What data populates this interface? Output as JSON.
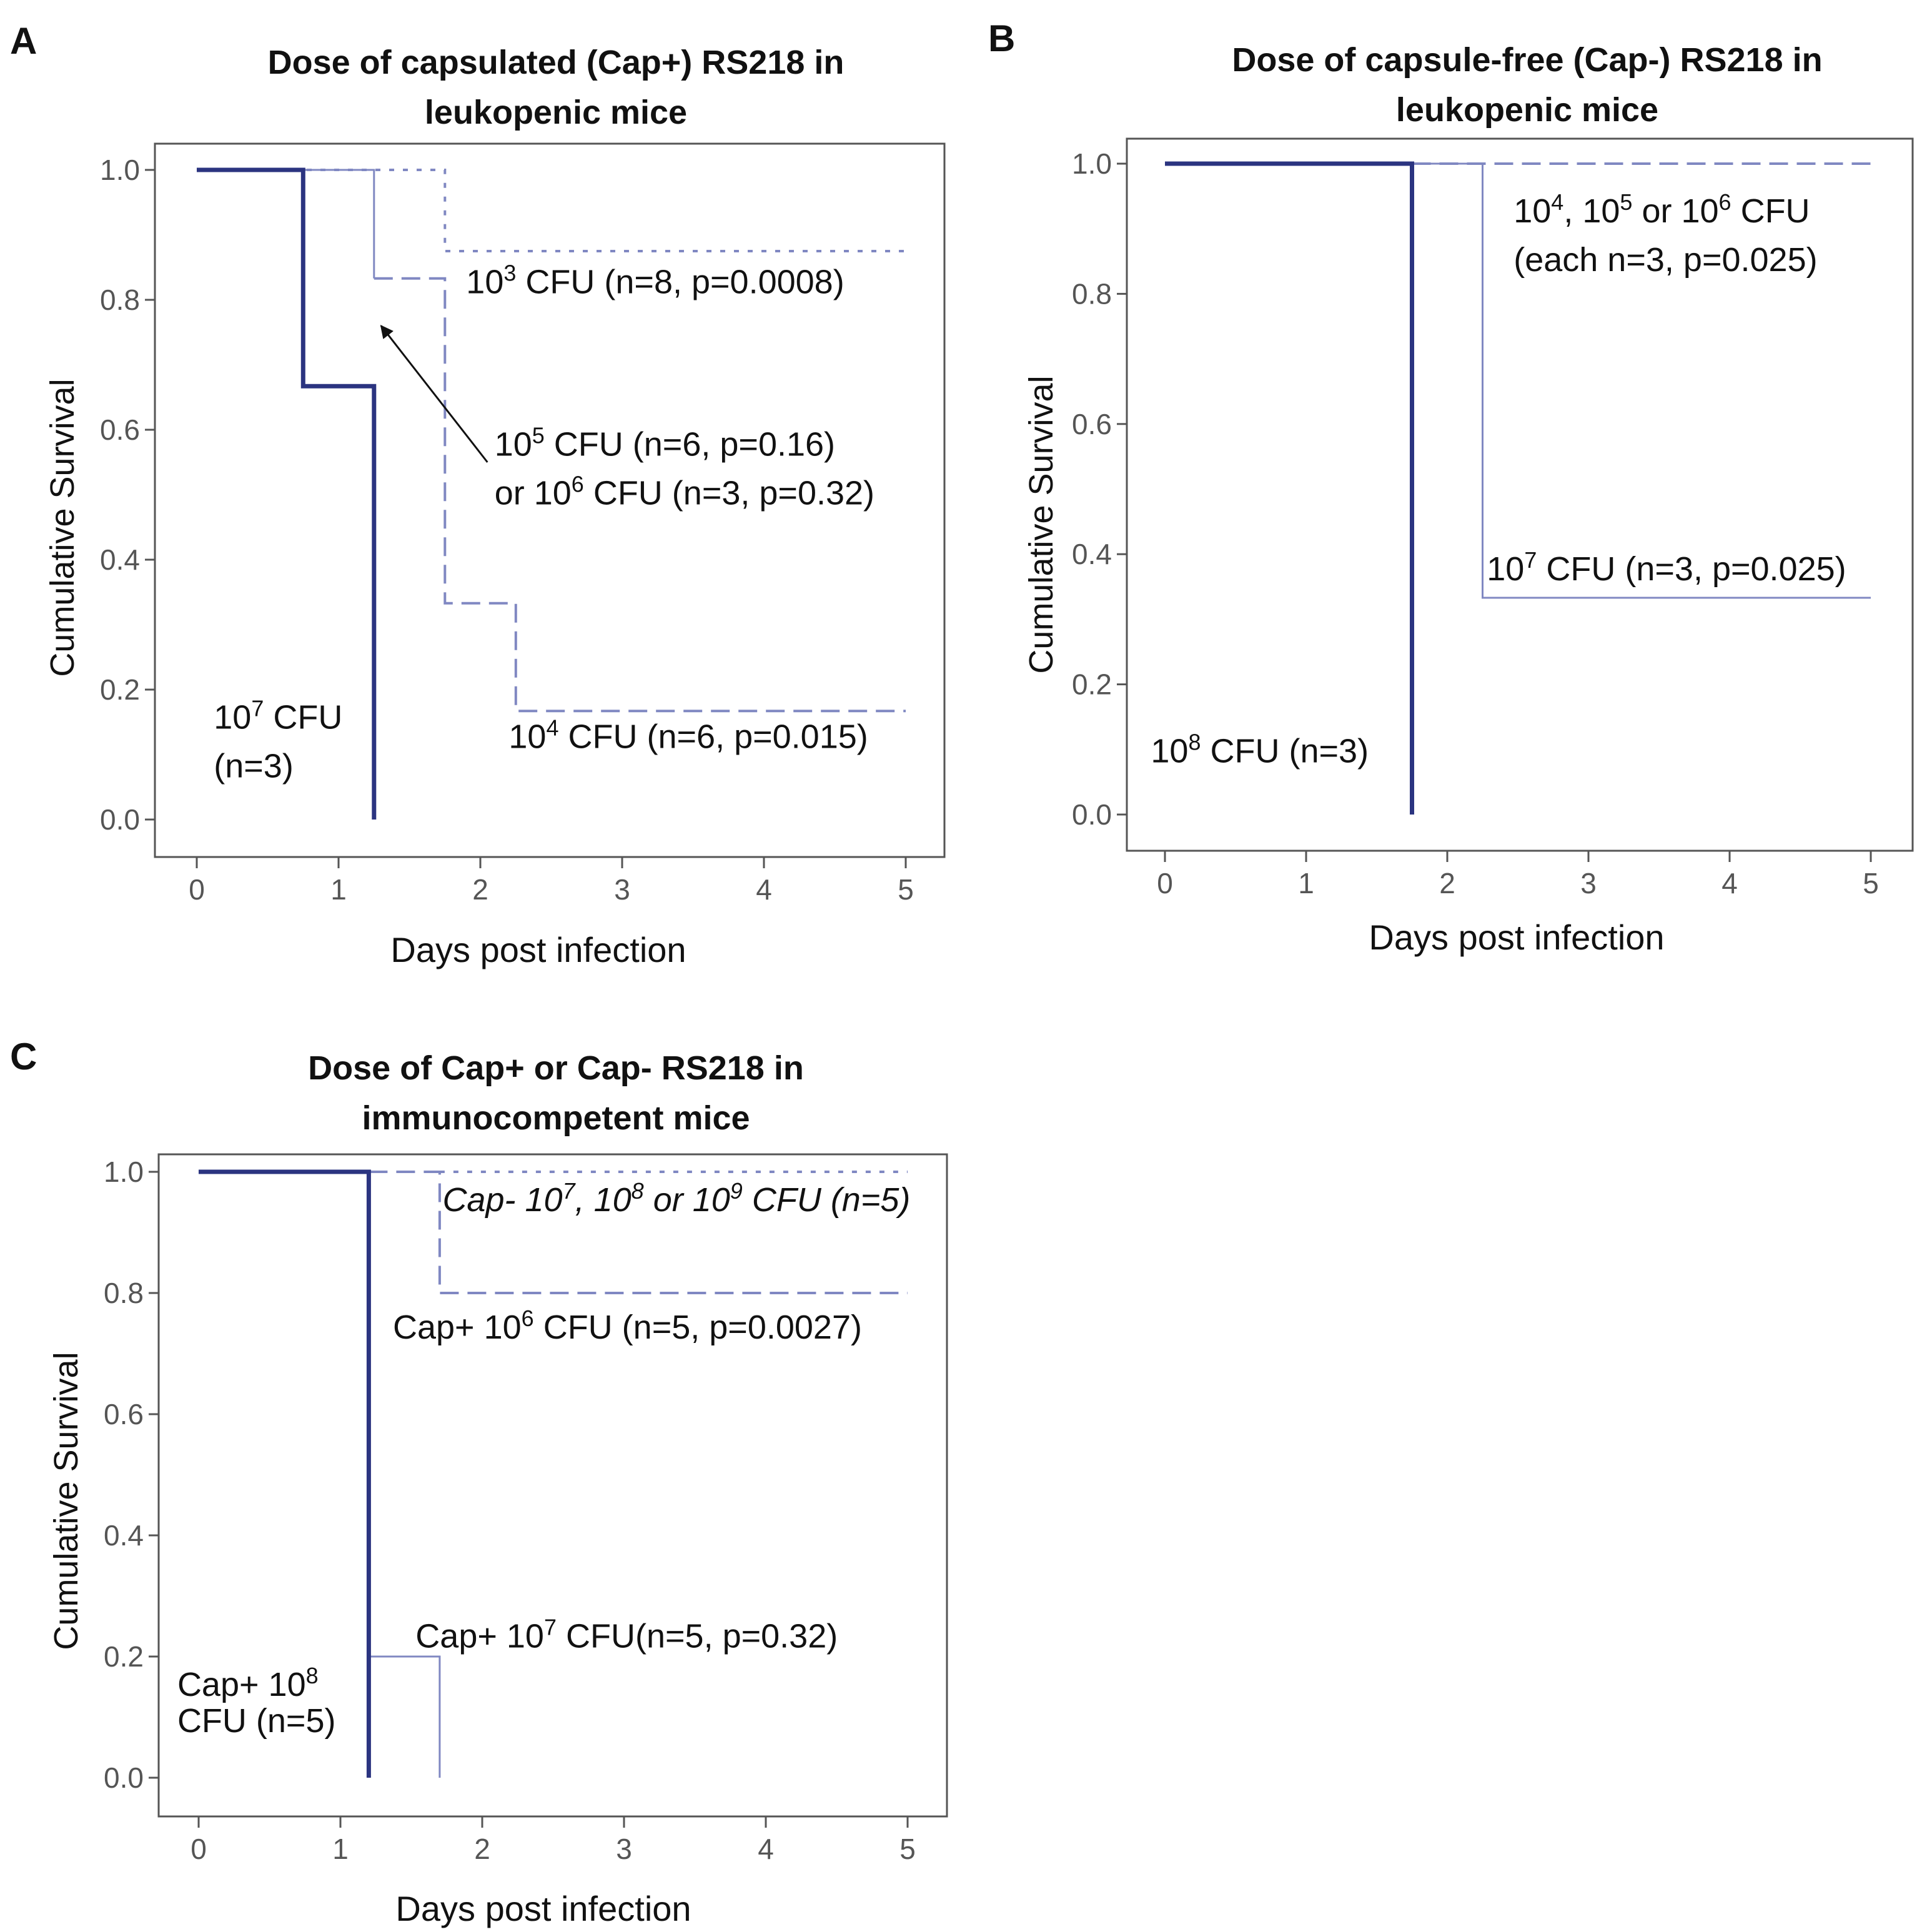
{
  "figure": {
    "dark_color": "#2b3480",
    "light_color": "#8088c2",
    "axis_color": "#555555"
  },
  "chart_data": [
    {
      "panel": "A",
      "type": "line",
      "subtype": "kaplan-meier-step",
      "title": "Dose of capsulated (Cap+) RS218 in leukopenic mice",
      "title_lines": [
        "Dose of capsulated (Cap+) RS218 in",
        "leukopenic mice"
      ],
      "xlabel": "Days post infection",
      "ylabel": "Cumulative Survival",
      "xlim": [
        0,
        5
      ],
      "ylim": [
        0,
        1
      ],
      "xticks": [
        "0",
        "1",
        "2",
        "3",
        "4",
        "5"
      ],
      "yticks": [
        "0.0",
        "0.2",
        "0.4",
        "0.6",
        "0.8",
        "1.0"
      ],
      "grid": false,
      "series": [
        {
          "name": "10^3 CFU",
          "style": "dotted",
          "color": "light",
          "x": [
            0,
            1.75,
            1.75,
            5
          ],
          "y": [
            1,
            1,
            0.875,
            0.875
          ]
        },
        {
          "name": "10^5 or 10^6 CFU",
          "style": "solid-thin",
          "color": "light",
          "x": [
            0,
            1.25,
            1.25
          ],
          "y": [
            1,
            1,
            0.833
          ]
        },
        {
          "name": "10^4 CFU",
          "style": "dashed",
          "color": "light",
          "x": [
            1.25,
            1.75,
            1.75,
            2.25,
            2.25,
            5
          ],
          "y": [
            0.833,
            0.833,
            0.333,
            0.333,
            0.167,
            0.167
          ]
        },
        {
          "name": "10^7 CFU",
          "style": "solid-thick",
          "color": "dark",
          "x": [
            0,
            0.75,
            0.75,
            1.25,
            1.25
          ],
          "y": [
            1,
            1,
            0.667,
            0.667,
            0
          ]
        }
      ],
      "annotations": [
        {
          "lines": [
            [
              {
                "t": "10"
              },
              {
                "sup": "3"
              },
              {
                "t": " CFU  (n=8,  p=0.0008)"
              }
            ]
          ],
          "x": 1.9,
          "y": 0.81,
          "anchor": "start"
        },
        {
          "lines": [
            [
              {
                "t": "10"
              },
              {
                "sup": "5"
              },
              {
                "t": " CFU  (n=6,  p=0.16)"
              }
            ],
            [
              {
                "t": "or 10"
              },
              {
                "sup": "6"
              },
              {
                "t": " CFU  (n=3,  p=0.32)"
              }
            ]
          ],
          "x": 2.1,
          "y": 0.56,
          "anchor": "start"
        },
        {
          "lines": [
            [
              {
                "t": "10"
              },
              {
                "sup": "4"
              },
              {
                "t": " CFU  (n=6,  p=0.015)"
              }
            ]
          ],
          "x": 2.2,
          "y": 0.11,
          "anchor": "start"
        },
        {
          "lines": [
            [
              {
                "t": "10"
              },
              {
                "sup": "7"
              },
              {
                "t": " CFU"
              }
            ],
            [
              {
                "t": "(n=3)"
              }
            ]
          ],
          "x": 0.12,
          "y": 0.14,
          "anchor": "start"
        }
      ],
      "arrows": [
        {
          "from": [
            2.05,
            0.55
          ],
          "to": [
            1.3,
            0.76
          ]
        }
      ]
    },
    {
      "panel": "B",
      "type": "line",
      "subtype": "kaplan-meier-step",
      "title": "Dose of capsule-free (Cap-) RS218 in leukopenic mice",
      "title_lines": [
        "Dose of capsule-free (Cap-) RS218 in",
        "leukopenic mice"
      ],
      "xlabel": "Days post infection",
      "ylabel": "Cumulative Survival",
      "xlim": [
        0,
        5
      ],
      "ylim": [
        0,
        1
      ],
      "xticks": [
        "0",
        "1",
        "2",
        "3",
        "4",
        "5"
      ],
      "yticks": [
        "0.0",
        "0.2",
        "0.4",
        "0.6",
        "0.8",
        "1.0"
      ],
      "grid": false,
      "series": [
        {
          "name": "10^4, 10^5 or 10^6 CFU",
          "style": "dashed",
          "color": "light",
          "x": [
            1.75,
            5
          ],
          "y": [
            1,
            1
          ]
        },
        {
          "name": "10^7 CFU",
          "style": "solid-thin",
          "color": "light",
          "x": [
            0,
            2.25,
            2.25,
            5
          ],
          "y": [
            1,
            1,
            0.333,
            0.333
          ]
        },
        {
          "name": "10^8 CFU",
          "style": "solid-thick",
          "color": "dark",
          "x": [
            0,
            1.75,
            1.75
          ],
          "y": [
            1,
            1,
            0
          ]
        }
      ],
      "annotations": [
        {
          "lines": [
            [
              {
                "t": "10"
              },
              {
                "sup": "4"
              },
              {
                "t": ",  10"
              },
              {
                "sup": "5"
              },
              {
                "t": " or  10"
              },
              {
                "sup": "6"
              },
              {
                "t": " CFU"
              }
            ],
            [
              {
                "t": "(each  n=3,  p=0.025)"
              }
            ]
          ],
          "x": 2.47,
          "y": 0.91,
          "anchor": "start"
        },
        {
          "lines": [
            [
              {
                "t": "10"
              },
              {
                "sup": "7"
              },
              {
                "t": " CFU  (n=3,  p=0.025)"
              }
            ]
          ],
          "x": 2.28,
          "y": 0.36,
          "anchor": "start"
        },
        {
          "lines": [
            [
              {
                "t": "10"
              },
              {
                "sup": "8"
              },
              {
                "t": " CFU  (n=3)"
              }
            ]
          ],
          "x": -0.1,
          "y": 0.08,
          "anchor": "start"
        }
      ],
      "arrows": []
    },
    {
      "panel": "C",
      "type": "line",
      "subtype": "kaplan-meier-step",
      "title": "Dose of Cap+ or Cap- RS218 in immunocompetent mice",
      "title_lines": [
        "Dose of Cap+ or Cap- RS218  in",
        "immunocompetent mice"
      ],
      "xlabel": "Days post infection",
      "ylabel": "Cumulative Survival",
      "xlim": [
        0,
        5
      ],
      "ylim": [
        0,
        1
      ],
      "xticks": [
        "0",
        "1",
        "2",
        "3",
        "4",
        "5"
      ],
      "yticks": [
        "0.0",
        "0.2",
        "0.4",
        "0.6",
        "0.8",
        "1.0"
      ],
      "grid": false,
      "series": [
        {
          "name": "Cap- 10^7, 10^8 or 10^9 CFU",
          "style": "dotted",
          "color": "light",
          "x": [
            1.7,
            5
          ],
          "y": [
            1,
            1
          ]
        },
        {
          "name": "Cap+ 10^6 CFU",
          "style": "dashed",
          "color": "light",
          "x": [
            1.2,
            1.7,
            1.7,
            5
          ],
          "y": [
            1,
            1,
            0.8,
            0.8
          ]
        },
        {
          "name": "Cap+ 10^7 CFU",
          "style": "solid-thin",
          "color": "light",
          "x": [
            1.2,
            1.7,
            1.7
          ],
          "y": [
            0.2,
            0.2,
            0
          ]
        },
        {
          "name": "Cap+ 10^8 CFU",
          "style": "solid-thick",
          "color": "dark",
          "x": [
            0,
            1.2,
            1.2
          ],
          "y": [
            1,
            1,
            0
          ]
        }
      ],
      "annotations": [
        {
          "italic": true,
          "lines": [
            [
              {
                "t": "Cap- 10"
              },
              {
                "sup": "7"
              },
              {
                "t": ",  10"
              },
              {
                "sup": "8"
              },
              {
                "t": " or  10"
              },
              {
                "sup": "9"
              },
              {
                "t": " CFU  (n=5)"
              }
            ]
          ],
          "x": 1.72,
          "y": 0.935,
          "anchor": "start"
        },
        {
          "lines": [
            [
              {
                "t": "Cap+  10"
              },
              {
                "sup": "6"
              },
              {
                "t": " CFU  (n=5,  p=0.0027)"
              }
            ]
          ],
          "x": 1.37,
          "y": 0.725,
          "anchor": "start"
        },
        {
          "lines": [
            [
              {
                "t": "Cap+  10"
              },
              {
                "sup": "7"
              },
              {
                "t": " CFU(n=5,  p=0.32)"
              }
            ]
          ],
          "x": 1.53,
          "y": 0.215,
          "anchor": "start"
        },
        {
          "lines": [
            [
              {
                "t": "Cap+  10"
              },
              {
                "sup": "8"
              }
            ],
            [
              {
                "t": "CFU  (n=5)"
              }
            ]
          ],
          "x": -0.15,
          "y": 0.135,
          "anchor": "start"
        }
      ],
      "arrows": []
    }
  ]
}
